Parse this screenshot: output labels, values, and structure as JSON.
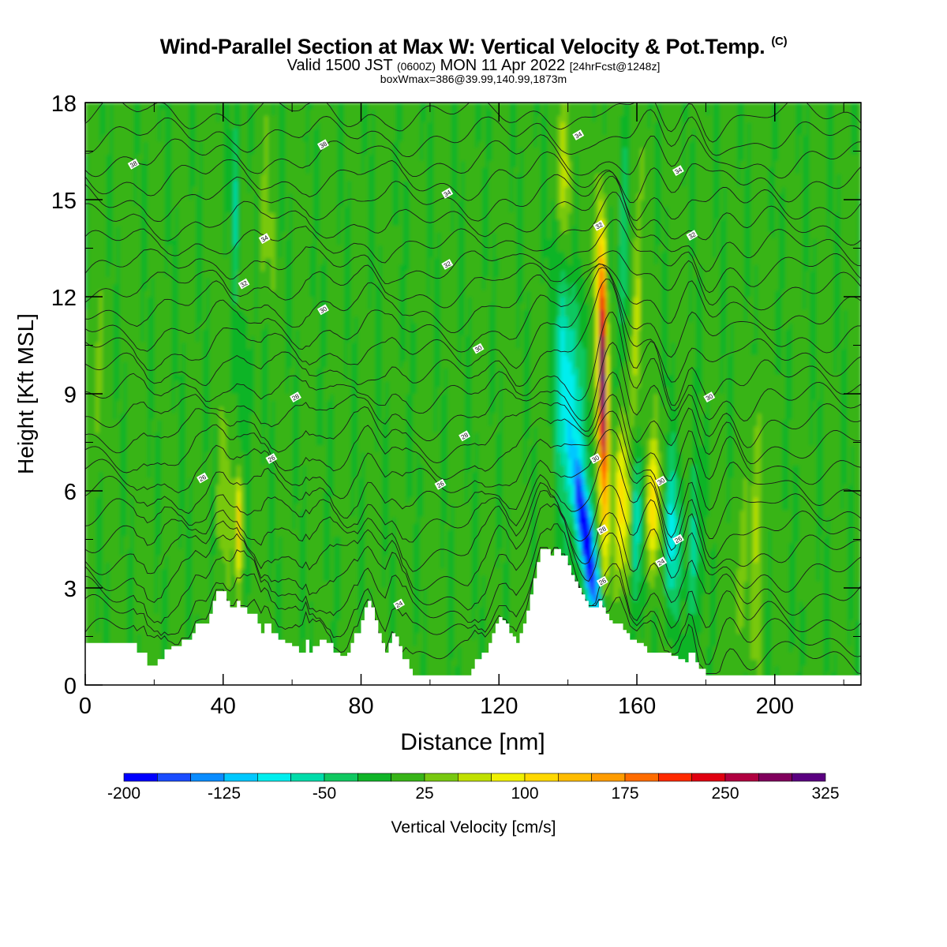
{
  "title": {
    "main": "Wind-Parallel Section at Max W: Vertical Velocity & Pot.Temp.",
    "copyright": "(C)",
    "valid_prefix": "Valid 1500 JST",
    "valid_utc": "(0600Z)",
    "valid_date": "MON 11 Apr 2022",
    "forecast": "[24hrFcst@1248z]",
    "box_info": "boxWmax=386@39.99,140.99,1873m"
  },
  "chart_data": {
    "type": "heatmap",
    "xlabel": "Distance [nm]",
    "ylabel": "Height [Kft MSL]",
    "xlim": [
      0,
      225
    ],
    "ylim": [
      0,
      18
    ],
    "xticks": [
      0,
      40,
      80,
      120,
      160,
      200
    ],
    "yticks": [
      0,
      3,
      6,
      9,
      12,
      15,
      18
    ],
    "colorbar": {
      "label": "Vertical Velocity [cm/s]",
      "min": -200,
      "max": 325,
      "step": 25,
      "tick_labels": [
        -200,
        -125,
        -50,
        25,
        100,
        175,
        250,
        325
      ],
      "colors": [
        "#0000ff",
        "#1a4cff",
        "#0a8cff",
        "#00c8ff",
        "#00eeee",
        "#00dcaa",
        "#10c860",
        "#10b428",
        "#38b418",
        "#78c810",
        "#c0e000",
        "#f0f000",
        "#ffd800",
        "#ffbc00",
        "#ff9c00",
        "#ff6c00",
        "#ff2a00",
        "#e00010",
        "#b00040",
        "#80005c",
        "#5a0080"
      ]
    },
    "isentropes_label": "Pot.Temp.",
    "contour_labels": [
      {
        "x": 14,
        "y": 16.1,
        "text": "38"
      },
      {
        "x": 69,
        "y": 16.7,
        "text": "38"
      },
      {
        "x": 105,
        "y": 15.2,
        "text": "34"
      },
      {
        "x": 143,
        "y": 17.0,
        "text": "34"
      },
      {
        "x": 172,
        "y": 15.9,
        "text": "34"
      },
      {
        "x": 52,
        "y": 13.8,
        "text": "34"
      },
      {
        "x": 149,
        "y": 14.2,
        "text": "32"
      },
      {
        "x": 176,
        "y": 13.9,
        "text": "32"
      },
      {
        "x": 46,
        "y": 12.4,
        "text": "32"
      },
      {
        "x": 105,
        "y": 13.0,
        "text": "32"
      },
      {
        "x": 69,
        "y": 11.6,
        "text": "30"
      },
      {
        "x": 114,
        "y": 10.4,
        "text": "30"
      },
      {
        "x": 181,
        "y": 8.9,
        "text": "30"
      },
      {
        "x": 61,
        "y": 8.9,
        "text": "28"
      },
      {
        "x": 110,
        "y": 7.7,
        "text": "28"
      },
      {
        "x": 54,
        "y": 7.0,
        "text": "26"
      },
      {
        "x": 34,
        "y": 6.4,
        "text": "26"
      },
      {
        "x": 148,
        "y": 7.0,
        "text": "30"
      },
      {
        "x": 167,
        "y": 6.3,
        "text": "30"
      },
      {
        "x": 103,
        "y": 6.2,
        "text": "26"
      },
      {
        "x": 150,
        "y": 4.8,
        "text": "28"
      },
      {
        "x": 172,
        "y": 4.5,
        "text": "26"
      },
      {
        "x": 167,
        "y": 3.8,
        "text": "24"
      },
      {
        "x": 150,
        "y": 3.2,
        "text": "26"
      },
      {
        "x": 91,
        "y": 2.5,
        "text": "24"
      }
    ],
    "terrain": [
      [
        0,
        1.3
      ],
      [
        5,
        1.3
      ],
      [
        10,
        1.3
      ],
      [
        14,
        1.3
      ],
      [
        15,
        1.0
      ],
      [
        17,
        1.0
      ],
      [
        18,
        0.6
      ],
      [
        20,
        0.6
      ],
      [
        21,
        0.8
      ],
      [
        23,
        1.1
      ],
      [
        25,
        1.2
      ],
      [
        28,
        1.4
      ],
      [
        31,
        1.6
      ],
      [
        32,
        1.9
      ],
      [
        35,
        1.9
      ],
      [
        36,
        2.2
      ],
      [
        37,
        2.6
      ],
      [
        38,
        2.9
      ],
      [
        40,
        2.9
      ],
      [
        41,
        2.6
      ],
      [
        42,
        2.4
      ],
      [
        43,
        2.4
      ],
      [
        44,
        2.6
      ],
      [
        45,
        2.4
      ],
      [
        46,
        2.4
      ],
      [
        47,
        2.2
      ],
      [
        48,
        2.2
      ],
      [
        50,
        1.9
      ],
      [
        51,
        1.6
      ],
      [
        52,
        1.9
      ],
      [
        54,
        1.6
      ],
      [
        56,
        1.4
      ],
      [
        58,
        1.3
      ],
      [
        60,
        1.2
      ],
      [
        62,
        1.0
      ],
      [
        63,
        1.0
      ],
      [
        64,
        1.4
      ],
      [
        65,
        1.0
      ],
      [
        66,
        1.2
      ],
      [
        68,
        1.4
      ],
      [
        70,
        1.3
      ],
      [
        72,
        1.0
      ],
      [
        74,
        0.9
      ],
      [
        76,
        1.0
      ],
      [
        77,
        1.3
      ],
      [
        78,
        1.6
      ],
      [
        80,
        2.0
      ],
      [
        81,
        2.4
      ],
      [
        82,
        2.6
      ],
      [
        83,
        2.4
      ],
      [
        84,
        2.0
      ],
      [
        85,
        1.6
      ],
      [
        86,
        1.3
      ],
      [
        87,
        1.0
      ],
      [
        88,
        1.3
      ],
      [
        89,
        1.6
      ],
      [
        90,
        1.5
      ],
      [
        91,
        1.2
      ],
      [
        92,
        0.8
      ],
      [
        94,
        0.5
      ],
      [
        95,
        0.3
      ],
      [
        97,
        0.3
      ],
      [
        100,
        0.3
      ],
      [
        105,
        0.3
      ],
      [
        110,
        0.3
      ],
      [
        112,
        0.5
      ],
      [
        113,
        0.8
      ],
      [
        115,
        1.0
      ],
      [
        117,
        1.3
      ],
      [
        118,
        1.6
      ],
      [
        119,
        1.9
      ],
      [
        120,
        2.1
      ],
      [
        121,
        2.0
      ],
      [
        122,
        1.9
      ],
      [
        123,
        1.6
      ],
      [
        124,
        1.5
      ],
      [
        125,
        1.3
      ],
      [
        126,
        1.6
      ],
      [
        127,
        1.9
      ],
      [
        128,
        2.3
      ],
      [
        129,
        2.8
      ],
      [
        130,
        3.3
      ],
      [
        131,
        3.8
      ],
      [
        132,
        4.2
      ],
      [
        134,
        4.2
      ],
      [
        135,
        4.0
      ],
      [
        136,
        4.2
      ],
      [
        137,
        4.2
      ],
      [
        138,
        4.0
      ],
      [
        139,
        4.0
      ],
      [
        140,
        3.7
      ],
      [
        141,
        3.4
      ],
      [
        142,
        3.2
      ],
      [
        143,
        3.0
      ],
      [
        144,
        2.8
      ],
      [
        145,
        2.6
      ],
      [
        146,
        2.4
      ],
      [
        148,
        2.4
      ],
      [
        149,
        2.6
      ],
      [
        150,
        2.4
      ],
      [
        151,
        2.2
      ],
      [
        152,
        2.0
      ],
      [
        153,
        1.9
      ],
      [
        155,
        1.9
      ],
      [
        156,
        1.7
      ],
      [
        157,
        1.6
      ],
      [
        158,
        1.4
      ],
      [
        160,
        1.3
      ],
      [
        162,
        1.2
      ],
      [
        163,
        1.0
      ],
      [
        165,
        1.0
      ],
      [
        168,
        1.0
      ],
      [
        170,
        0.9
      ],
      [
        172,
        0.8
      ],
      [
        174,
        0.7
      ],
      [
        175,
        1.0
      ],
      [
        176,
        1.0
      ],
      [
        177,
        0.7
      ],
      [
        178,
        0.5
      ],
      [
        180,
        0.3
      ],
      [
        185,
        0.3
      ],
      [
        190,
        0.3
      ],
      [
        195,
        0.3
      ],
      [
        200,
        0.3
      ],
      [
        205,
        0.3
      ],
      [
        210,
        0.3
      ],
      [
        215,
        0.3
      ],
      [
        220,
        0.3
      ],
      [
        225,
        0.3
      ]
    ]
  }
}
